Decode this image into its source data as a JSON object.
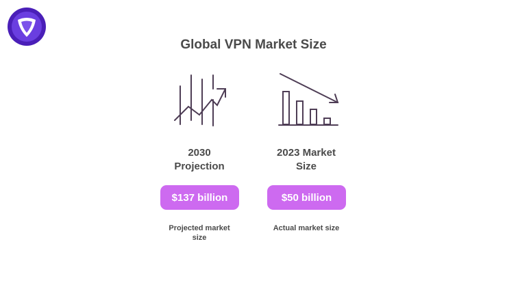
{
  "title": "Global VPN Market Size",
  "colors": {
    "accent": "#cd6af0",
    "text": "#4a4a4a",
    "icon_stroke": "#4e3d55",
    "logo": "#5b2ec9"
  },
  "logo_icon": "vpn-shield-logo-icon",
  "cards": [
    {
      "icon": "rising-chart-icon",
      "label_line1": "2030",
      "label_line2": "Projection",
      "value": "$137 billion",
      "caption_line1": "Projected market",
      "caption_line2": "size"
    },
    {
      "icon": "falling-bar-chart-icon",
      "label_line1": "2023 Market",
      "label_line2": "Size",
      "value": "$50 billion",
      "caption_line1": "Actual market size",
      "caption_line2": ""
    }
  ]
}
